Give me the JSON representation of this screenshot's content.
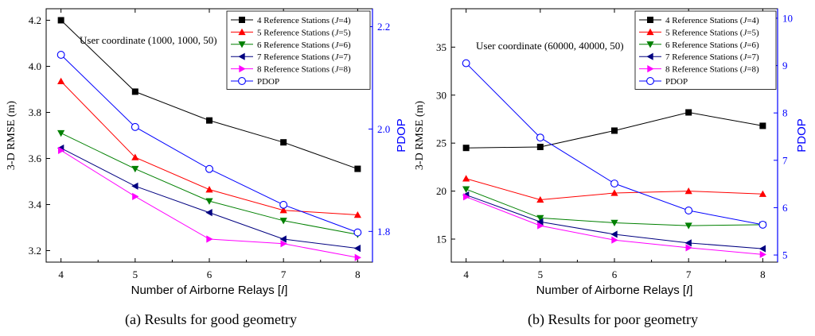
{
  "chart_data": [
    {
      "type": "line",
      "caption": "(a) Results for good geometry",
      "annotation": "User coordinate (1000, 1000, 50)",
      "xlabel": "Number of Airborne Relays [I]",
      "ylabel": "3-D RMSE (m)",
      "y2label": "PDOP",
      "x": [
        4,
        5,
        6,
        7,
        8
      ],
      "xticks": [
        "4",
        "5",
        "6",
        "7",
        "8"
      ],
      "ylim": [
        3.15,
        4.25
      ],
      "yticks": [
        "3.2",
        "3.4",
        "3.6",
        "3.8",
        "4.0",
        "4.2"
      ],
      "y2lim": [
        1.74,
        2.235
      ],
      "y2ticks": [
        "1.8",
        "2.0",
        "2.2"
      ],
      "legend_position": "top-right",
      "series": [
        {
          "name": "4 Reference Stations (J=4)",
          "color": "#000000",
          "marker": "square",
          "axis": "left",
          "values": [
            4.2,
            3.89,
            3.765,
            3.67,
            3.555
          ]
        },
        {
          "name": "5 Reference Stations (J=5)",
          "color": "#ff0000",
          "marker": "triangle-up",
          "axis": "left",
          "values": [
            3.935,
            3.605,
            3.465,
            3.375,
            3.355
          ]
        },
        {
          "name": "6 Reference Stations (J=6)",
          "color": "#008000",
          "marker": "triangle-down",
          "axis": "left",
          "values": [
            3.71,
            3.555,
            3.415,
            3.33,
            3.27
          ]
        },
        {
          "name": "7 Reference Stations (J=7)",
          "color": "#000080",
          "marker": "triangle-left",
          "axis": "left",
          "values": [
            3.645,
            3.48,
            3.365,
            3.25,
            3.21
          ]
        },
        {
          "name": "8 Reference Stations (J=8)",
          "color": "#ff00ff",
          "marker": "triangle-right",
          "axis": "left",
          "values": [
            3.635,
            3.435,
            3.25,
            3.23,
            3.17
          ]
        },
        {
          "name": "PDOP",
          "color": "#0000ff",
          "marker": "circle-open",
          "axis": "right",
          "values": [
            2.145,
            2.004,
            1.922,
            1.852,
            1.798
          ]
        }
      ]
    },
    {
      "type": "line",
      "caption": "(b) Results for poor geometry",
      "annotation": "User coordinate (60000, 40000, 50)",
      "xlabel": "Number of Airborne Relays [I]",
      "ylabel": "3-D RMSE (m)",
      "y2label": "PDOP",
      "x": [
        4,
        5,
        6,
        7,
        8
      ],
      "xticks": [
        "4",
        "5",
        "6",
        "7",
        "8"
      ],
      "ylim": [
        12.6,
        39
      ],
      "yticks": [
        "15",
        "20",
        "25",
        "30",
        "35"
      ],
      "y2lim": [
        4.85,
        10.2
      ],
      "y2ticks": [
        "5",
        "6",
        "7",
        "8",
        "9",
        "10"
      ],
      "legend_position": "top-right",
      "series": [
        {
          "name": "4 Reference Stations (J=4)",
          "color": "#000000",
          "marker": "square",
          "axis": "left",
          "values": [
            24.5,
            24.6,
            26.3,
            28.2,
            26.8
          ]
        },
        {
          "name": "5 Reference Stations (J=5)",
          "color": "#ff0000",
          "marker": "triangle-up",
          "axis": "left",
          "values": [
            21.3,
            19.1,
            19.8,
            20.0,
            19.7
          ]
        },
        {
          "name": "6 Reference Stations (J=6)",
          "color": "#008000",
          "marker": "triangle-down",
          "axis": "left",
          "values": [
            20.2,
            17.2,
            16.7,
            16.4,
            16.5
          ]
        },
        {
          "name": "7 Reference Stations (J=7)",
          "color": "#000080",
          "marker": "triangle-left",
          "axis": "left",
          "values": [
            19.6,
            16.8,
            15.5,
            14.6,
            14.0
          ]
        },
        {
          "name": "8 Reference Stations (J=8)",
          "color": "#ff00ff",
          "marker": "triangle-right",
          "axis": "left",
          "values": [
            19.4,
            16.4,
            14.9,
            14.1,
            13.4
          ]
        },
        {
          "name": "PDOP",
          "color": "#0000ff",
          "marker": "circle-open",
          "axis": "right",
          "values": [
            9.05,
            7.48,
            6.51,
            5.94,
            5.64
          ]
        }
      ]
    }
  ]
}
